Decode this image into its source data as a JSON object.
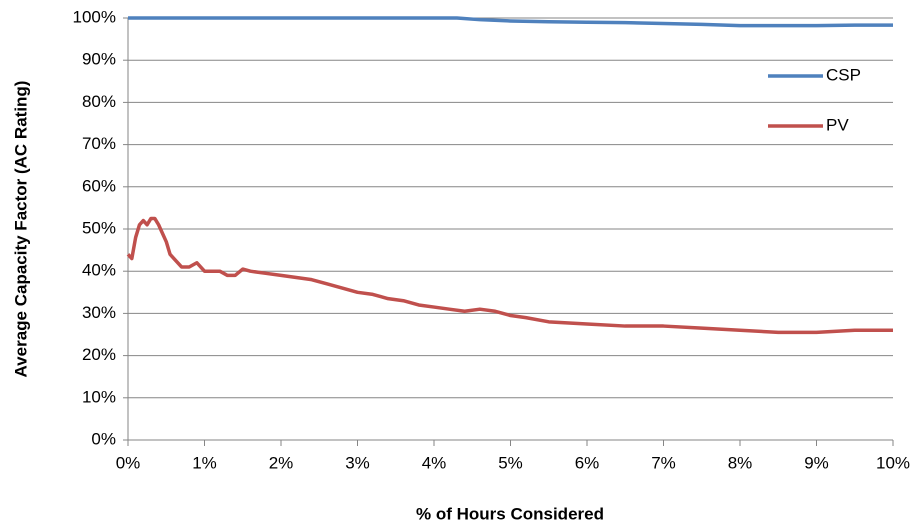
{
  "chart_data": {
    "type": "line",
    "x_label": "% of Hours Considered",
    "y_label": "Average Capacity Factor (AC Rating)",
    "xlim": [
      0,
      10
    ],
    "xticks": [
      {
        "value": 0,
        "label": "0%"
      },
      {
        "value": 1,
        "label": "1%"
      },
      {
        "value": 2,
        "label": "2%"
      },
      {
        "value": 3,
        "label": "3%"
      },
      {
        "value": 4,
        "label": "4%"
      },
      {
        "value": 5,
        "label": "5%"
      },
      {
        "value": 6,
        "label": "6%"
      },
      {
        "value": 7,
        "label": "7%"
      },
      {
        "value": 8,
        "label": "8%"
      },
      {
        "value": 9,
        "label": "9%"
      },
      {
        "value": 10,
        "label": "10%"
      }
    ],
    "ylim": [
      0,
      100
    ],
    "yticks": [
      {
        "value": 0,
        "label": "0%"
      },
      {
        "value": 10,
        "label": "10%"
      },
      {
        "value": 20,
        "label": "20%"
      },
      {
        "value": 30,
        "label": "30%"
      },
      {
        "value": 40,
        "label": "40%"
      },
      {
        "value": 50,
        "label": "50%"
      },
      {
        "value": 60,
        "label": "60%"
      },
      {
        "value": 70,
        "label": "70%"
      },
      {
        "value": 80,
        "label": "80%"
      },
      {
        "value": 90,
        "label": "90%"
      },
      {
        "value": 100,
        "label": "100%"
      }
    ],
    "grid": true,
    "legend": "upper right",
    "series": [
      {
        "name": "CSP",
        "color": "#4f81bd",
        "x": [
          0,
          1,
          2,
          3,
          4,
          4.3,
          4.6,
          5,
          5.5,
          6,
          6.5,
          7,
          7.5,
          8,
          8.5,
          9,
          9.5,
          10
        ],
        "values": [
          100,
          100,
          100,
          100,
          100,
          100,
          99.6,
          99.3,
          99.1,
          99,
          98.9,
          98.7,
          98.5,
          98.2,
          98.2,
          98.2,
          98.3,
          98.3
        ]
      },
      {
        "name": "PV",
        "color": "#c0504d",
        "x": [
          0,
          0.05,
          0.1,
          0.15,
          0.2,
          0.25,
          0.3,
          0.35,
          0.4,
          0.45,
          0.5,
          0.55,
          0.6,
          0.7,
          0.8,
          0.9,
          1.0,
          1.1,
          1.2,
          1.3,
          1.4,
          1.5,
          1.6,
          1.8,
          2.0,
          2.2,
          2.4,
          2.6,
          2.8,
          3.0,
          3.2,
          3.4,
          3.6,
          3.8,
          4.0,
          4.2,
          4.4,
          4.6,
          4.8,
          5.0,
          5.2,
          5.5,
          6.0,
          6.5,
          7.0,
          7.5,
          8.0,
          8.5,
          9.0,
          9.5,
          10
        ],
        "values": [
          44,
          43,
          48,
          51,
          52,
          51,
          52.5,
          52.5,
          51,
          49,
          47,
          44,
          43,
          41,
          41,
          42,
          40,
          40,
          40,
          39,
          39,
          40.5,
          40,
          39.5,
          39,
          38.5,
          38,
          37,
          36,
          35,
          34.5,
          33.5,
          33,
          32,
          31.5,
          31,
          30.5,
          31,
          30.5,
          29.5,
          29,
          28,
          27.5,
          27,
          27,
          26.5,
          26,
          25.5,
          25.5,
          26,
          26
        ]
      }
    ]
  }
}
